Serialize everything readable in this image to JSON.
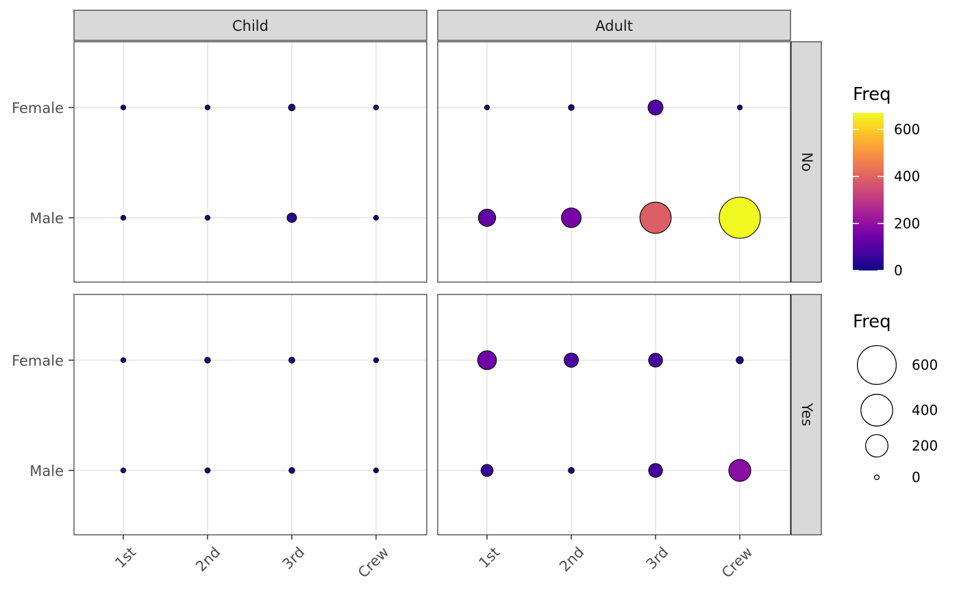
{
  "chart_data": {
    "type": "scatter",
    "facet_cols": [
      "Child",
      "Adult"
    ],
    "facet_rows": [
      "No",
      "Yes"
    ],
    "x_categories": [
      "1st",
      "2nd",
      "3rd",
      "Crew"
    ],
    "y_categories": [
      "Female",
      "Male"
    ],
    "points": [
      {
        "age": "Child",
        "survived": "No",
        "sex": "Female",
        "class": "1st",
        "freq": 0
      },
      {
        "age": "Child",
        "survived": "No",
        "sex": "Female",
        "class": "2nd",
        "freq": 0
      },
      {
        "age": "Child",
        "survived": "No",
        "sex": "Female",
        "class": "3rd",
        "freq": 17
      },
      {
        "age": "Child",
        "survived": "No",
        "sex": "Female",
        "class": "Crew",
        "freq": 0
      },
      {
        "age": "Child",
        "survived": "No",
        "sex": "Male",
        "class": "1st",
        "freq": 0
      },
      {
        "age": "Child",
        "survived": "No",
        "sex": "Male",
        "class": "2nd",
        "freq": 0
      },
      {
        "age": "Child",
        "survived": "No",
        "sex": "Male",
        "class": "3rd",
        "freq": 35
      },
      {
        "age": "Child",
        "survived": "No",
        "sex": "Male",
        "class": "Crew",
        "freq": 0
      },
      {
        "age": "Adult",
        "survived": "No",
        "sex": "Female",
        "class": "1st",
        "freq": 4
      },
      {
        "age": "Adult",
        "survived": "No",
        "sex": "Female",
        "class": "2nd",
        "freq": 13
      },
      {
        "age": "Adult",
        "survived": "No",
        "sex": "Female",
        "class": "3rd",
        "freq": 89
      },
      {
        "age": "Adult",
        "survived": "No",
        "sex": "Female",
        "class": "Crew",
        "freq": 3
      },
      {
        "age": "Adult",
        "survived": "No",
        "sex": "Male",
        "class": "1st",
        "freq": 118
      },
      {
        "age": "Adult",
        "survived": "No",
        "sex": "Male",
        "class": "2nd",
        "freq": 154
      },
      {
        "age": "Adult",
        "survived": "No",
        "sex": "Male",
        "class": "3rd",
        "freq": 387
      },
      {
        "age": "Adult",
        "survived": "No",
        "sex": "Male",
        "class": "Crew",
        "freq": 670
      },
      {
        "age": "Child",
        "survived": "Yes",
        "sex": "Female",
        "class": "1st",
        "freq": 1
      },
      {
        "age": "Child",
        "survived": "Yes",
        "sex": "Female",
        "class": "2nd",
        "freq": 13
      },
      {
        "age": "Child",
        "survived": "Yes",
        "sex": "Female",
        "class": "3rd",
        "freq": 14
      },
      {
        "age": "Child",
        "survived": "Yes",
        "sex": "Female",
        "class": "Crew",
        "freq": 0
      },
      {
        "age": "Child",
        "survived": "Yes",
        "sex": "Male",
        "class": "1st",
        "freq": 5
      },
      {
        "age": "Child",
        "survived": "Yes",
        "sex": "Male",
        "class": "2nd",
        "freq": 11
      },
      {
        "age": "Child",
        "survived": "Yes",
        "sex": "Male",
        "class": "3rd",
        "freq": 13
      },
      {
        "age": "Child",
        "survived": "Yes",
        "sex": "Male",
        "class": "Crew",
        "freq": 0
      },
      {
        "age": "Adult",
        "survived": "Yes",
        "sex": "Female",
        "class": "1st",
        "freq": 140
      },
      {
        "age": "Adult",
        "survived": "Yes",
        "sex": "Female",
        "class": "2nd",
        "freq": 80
      },
      {
        "age": "Adult",
        "survived": "Yes",
        "sex": "Female",
        "class": "3rd",
        "freq": 76
      },
      {
        "age": "Adult",
        "survived": "Yes",
        "sex": "Female",
        "class": "Crew",
        "freq": 20
      },
      {
        "age": "Adult",
        "survived": "Yes",
        "sex": "Male",
        "class": "1st",
        "freq": 57
      },
      {
        "age": "Adult",
        "survived": "Yes",
        "sex": "Male",
        "class": "2nd",
        "freq": 14
      },
      {
        "age": "Adult",
        "survived": "Yes",
        "sex": "Male",
        "class": "3rd",
        "freq": 75
      },
      {
        "age": "Adult",
        "survived": "Yes",
        "sex": "Male",
        "class": "Crew",
        "freq": 192
      }
    ],
    "color_legend": {
      "title": "Freq",
      "scale": "plasma",
      "breaks": [
        0,
        200,
        400,
        600
      ],
      "break_labels": [
        "0",
        "200",
        "400",
        "600"
      ],
      "range": [
        0,
        670
      ]
    },
    "size_legend": {
      "title": "Freq",
      "breaks": [
        600,
        400,
        200,
        0
      ],
      "break_labels": [
        "600",
        "400",
        "200",
        "0"
      ]
    },
    "colors": {
      "background": "#ffffff",
      "strip_fill": "#d9d9d9",
      "border": "#333333",
      "grid": "#ebebeb",
      "point_stroke": "#000000"
    },
    "grid": true,
    "legend_position": "right"
  }
}
